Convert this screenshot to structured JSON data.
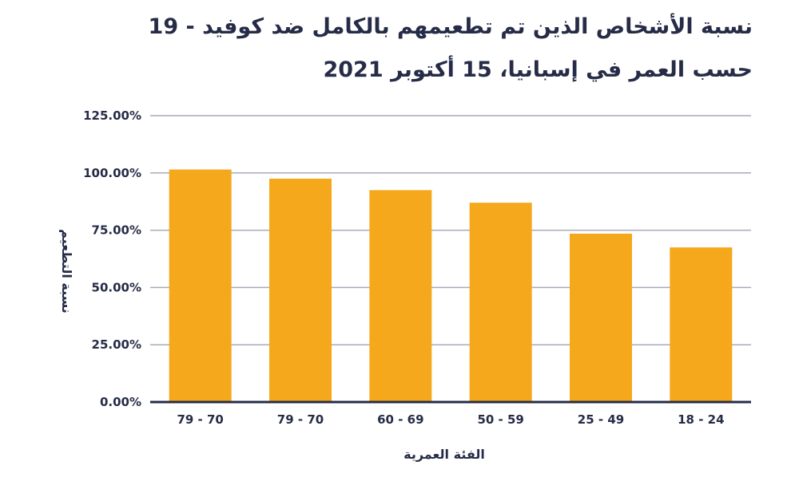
{
  "chart_data": {
    "type": "bar",
    "title": "نسبة الأشخاص الذين تم تطعيمهم بالكامل ضد كوفيد - 19",
    "subtitle": "حسب العمر في إسبانيا، 15 أكتوبر 2021",
    "xlabel": "الفئة العمرية",
    "ylabel": "نسبة التطعيم",
    "categories": [
      "79 - 70",
      "79 - 70",
      "60 - 69",
      "50 - 59",
      "25 - 49",
      "18 - 24"
    ],
    "values": [
      101.5,
      97.5,
      92.5,
      87,
      73.5,
      67.5
    ],
    "ylim": [
      0,
      125
    ],
    "yticks": [
      0,
      25,
      50,
      75,
      100,
      125
    ],
    "ytick_labels": [
      "0.00%",
      "25.00%",
      "50.00%",
      "75.00%",
      "100.00%",
      "125.00%"
    ],
    "grid": true,
    "legend": "none",
    "colors": {
      "bar": "#f5a81c",
      "grid": "#a9aab8",
      "axis": "#262c47",
      "text": "#262c47"
    }
  }
}
